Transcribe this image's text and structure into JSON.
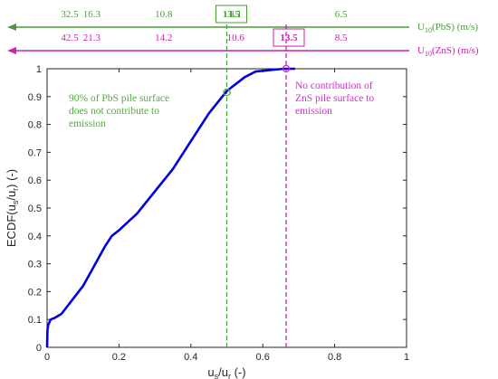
{
  "chart_data": {
    "type": "line",
    "title": "",
    "xlabel": "u_s/u_r (-)",
    "ylabel": "ECDF(u_s/u_r) (-)",
    "xlim": [
      0,
      1
    ],
    "ylim": [
      0,
      1
    ],
    "xticks": [
      0,
      0.2,
      0.4,
      0.6,
      0.8,
      1
    ],
    "xtick_labels": [
      "0",
      "0.2",
      "0.4",
      "0.6",
      "0.8",
      "1"
    ],
    "yticks": [
      0,
      0.1,
      0.2,
      0.3,
      0.4,
      0.5,
      0.6,
      0.7,
      0.8,
      0.9,
      1
    ],
    "ytick_labels": [
      "0",
      "0.1",
      "0.2",
      "0.3",
      "0.4",
      "0.5",
      "0.6",
      "0.7",
      "0.8",
      "0.9",
      "1"
    ],
    "grid": false,
    "series": [
      {
        "color": "#0000dd",
        "x": [
          0,
          0.001,
          0.003,
          0.01,
          0.02,
          0.04,
          0.07,
          0.1,
          0.13,
          0.16,
          0.18,
          0.2,
          0.25,
          0.3,
          0.35,
          0.4,
          0.45,
          0.5,
          0.55,
          0.58,
          0.62,
          0.66,
          0.69
        ],
        "y": [
          0,
          0.06,
          0.08,
          0.1,
          0.105,
          0.12,
          0.17,
          0.22,
          0.29,
          0.36,
          0.4,
          0.42,
          0.48,
          0.56,
          0.64,
          0.74,
          0.84,
          0.92,
          0.97,
          0.99,
          0.995,
          1.0,
          1.0
        ]
      }
    ],
    "vlines": [
      {
        "x": 0.5,
        "color": "#33aa33"
      },
      {
        "x": 0.665,
        "color": "#dd00dd"
      }
    ],
    "markers": [
      {
        "x": 0.5,
        "y": 0.915,
        "color": "#55aa44"
      },
      {
        "x": 0.665,
        "y": 1.0,
        "color": "#cc33cc"
      }
    ],
    "annotations": [
      {
        "id": "pbs-note",
        "lines": [
          "90% of PbS pile surface",
          "does not contribute to",
          "emission"
        ],
        "color": "#55aa44"
      },
      {
        "id": "zns-note",
        "lines": [
          "No contribution of",
          "ZnS pile surface to",
          "emission"
        ],
        "color": "#cc33cc"
      }
    ],
    "wind_axes": [
      {
        "id": "pbs",
        "label_prefix": "U",
        "label_sub": "10",
        "label_suffix": "(PbS) (m/s)",
        "color": "#4a9a3a",
        "ticks": [
          {
            "x": 0,
            "label": "32.5"
          },
          {
            "x": 0.2,
            "label": "16.3"
          },
          {
            "x": 0.4,
            "label": "10.8"
          },
          {
            "x": 0.6,
            "label": "8.1"
          },
          {
            "x": 0.8,
            "label": "6.5"
          }
        ],
        "highlight": {
          "x": 0.5,
          "label": "13.5"
        }
      },
      {
        "id": "zns",
        "label_prefix": "U",
        "label_sub": "10",
        "label_suffix": "(ZnS) (m/s)",
        "color": "#cc22aa",
        "ticks": [
          {
            "x": 0,
            "label": "42.5"
          },
          {
            "x": 0.2,
            "label": "21.3"
          },
          {
            "x": 0.4,
            "label": "14.2"
          },
          {
            "x": 0.6,
            "label": "10.6"
          },
          {
            "x": 0.8,
            "label": "8.5"
          }
        ],
        "highlight": {
          "x": 0.665,
          "label": "13.5"
        }
      }
    ]
  }
}
